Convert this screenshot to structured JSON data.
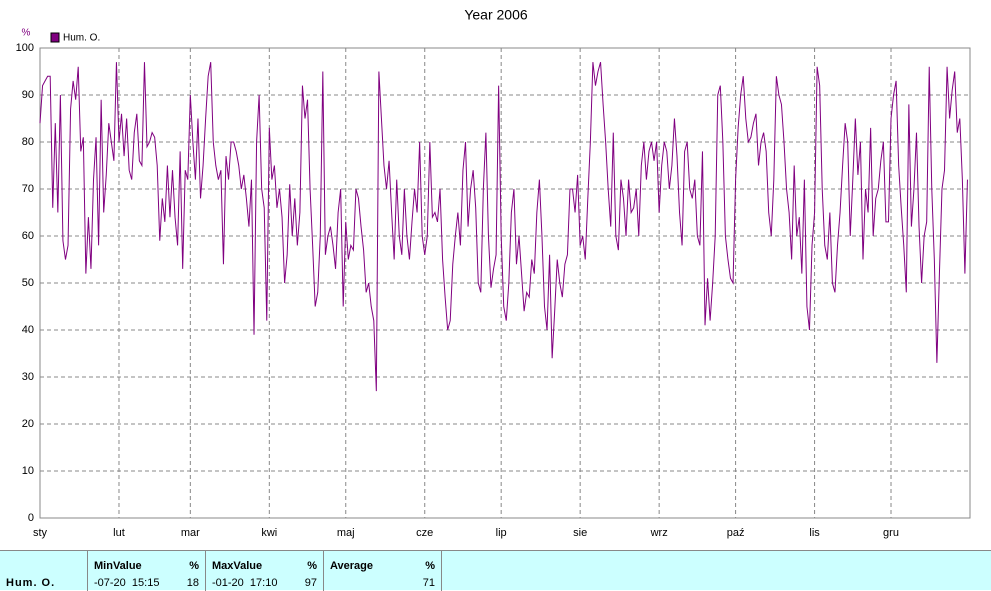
{
  "chart_data": {
    "type": "line",
    "title": "Year 2006",
    "y_label": "%",
    "series": [
      {
        "name": "Hum. O.",
        "color": "#800080",
        "values": [
          84,
          92,
          93,
          94,
          94,
          66,
          84,
          65,
          90,
          59,
          55,
          58,
          87,
          93,
          89,
          96,
          78,
          81,
          52,
          64,
          53,
          72,
          81,
          58,
          89,
          65,
          73,
          84,
          80,
          76,
          97,
          80,
          86,
          77,
          85,
          74,
          72,
          82,
          86,
          76,
          75,
          97,
          79,
          80,
          82,
          81,
          75,
          59,
          68,
          63,
          75,
          64,
          74,
          64,
          58,
          78,
          53,
          74,
          72,
          90,
          80,
          72,
          85,
          68,
          75,
          85,
          94,
          97,
          80,
          75,
          72,
          74,
          54,
          77,
          72,
          80,
          80,
          78,
          75,
          70,
          73,
          68,
          62,
          72,
          39,
          80,
          90,
          70,
          66,
          42,
          83,
          72,
          75,
          66,
          70,
          64,
          50,
          56,
          71,
          60,
          68,
          58,
          65,
          92,
          85,
          89,
          70,
          58,
          45,
          48,
          60,
          95,
          56,
          60,
          62,
          58,
          53,
          65,
          70,
          45,
          63,
          55,
          58,
          57,
          70,
          68,
          62,
          57,
          48,
          50,
          45,
          42,
          27,
          95,
          85,
          75,
          70,
          76,
          65,
          55,
          72,
          60,
          56,
          70,
          60,
          55,
          63,
          70,
          65,
          80,
          60,
          56,
          60,
          80,
          64,
          65,
          63,
          70,
          55,
          47,
          40,
          42,
          54,
          60,
          65,
          58,
          74,
          80,
          62,
          70,
          74,
          66,
          50,
          48,
          70,
          82,
          60,
          49,
          53,
          56,
          92,
          60,
          45,
          42,
          50,
          65,
          70,
          54,
          60,
          52,
          44,
          48,
          47,
          55,
          52,
          65,
          72,
          60,
          45,
          40,
          56,
          34,
          44,
          55,
          50,
          47,
          54,
          56,
          70,
          70,
          65,
          73,
          58,
          60,
          55,
          68,
          80,
          97,
          92,
          95,
          97,
          88,
          80,
          70,
          62,
          82,
          60,
          57,
          72,
          68,
          60,
          72,
          65,
          66,
          70,
          60,
          75,
          80,
          72,
          78,
          80,
          76,
          80,
          65,
          75,
          80,
          78,
          70,
          75,
          85,
          77,
          65,
          58,
          78,
          80,
          70,
          68,
          72,
          60,
          58,
          78,
          41,
          51,
          42,
          50,
          60,
          90,
          92,
          80,
          60,
          55,
          51,
          50,
          72,
          83,
          90,
          94,
          85,
          80,
          81,
          84,
          86,
          75,
          80,
          82,
          78,
          65,
          60,
          72,
          94,
          90,
          88,
          80,
          70,
          65,
          55,
          75,
          60,
          64,
          52,
          72,
          45,
          40,
          58,
          65,
          96,
          92,
          70,
          58,
          55,
          65,
          50,
          48,
          58,
          65,
          75,
          84,
          80,
          60,
          72,
          85,
          73,
          80,
          55,
          70,
          65,
          83,
          60,
          68,
          70,
          76,
          80,
          63,
          63,
          85,
          90,
          93,
          75,
          66,
          58,
          48,
          88,
          62,
          70,
          82,
          62,
          50,
          60,
          63,
          96,
          70,
          55,
          33,
          52,
          70,
          74,
          96,
          85,
          91,
          95,
          82,
          85,
          72,
          52,
          72
        ]
      }
    ],
    "xlim": [
      0,
      365
    ],
    "xticks": [
      {
        "value": 0,
        "label": "sty"
      },
      {
        "value": 31,
        "label": "lut"
      },
      {
        "value": 59,
        "label": "mar"
      },
      {
        "value": 90,
        "label": "kwi"
      },
      {
        "value": 120,
        "label": "maj"
      },
      {
        "value": 151,
        "label": "cze"
      },
      {
        "value": 181,
        "label": "lip"
      },
      {
        "value": 212,
        "label": "sie"
      },
      {
        "value": 243,
        "label": "wrz"
      },
      {
        "value": 273,
        "label": "paź"
      },
      {
        "value": 304,
        "label": "lis"
      },
      {
        "value": 334,
        "label": "gru"
      }
    ],
    "ylim": [
      0,
      100
    ],
    "yticks": [
      0,
      10,
      20,
      30,
      40,
      50,
      60,
      70,
      80,
      90,
      100
    ],
    "grid": true
  },
  "table": {
    "row_label": "Hum. O.",
    "columns": [
      {
        "header": "MinValue",
        "unit": "%",
        "time": "-07-20  15:15",
        "value": "18"
      },
      {
        "header": "MaxValue",
        "unit": "%",
        "time": "-01-20  17:10",
        "value": "97"
      },
      {
        "header": "Average",
        "unit": "%",
        "value": "71"
      }
    ]
  }
}
